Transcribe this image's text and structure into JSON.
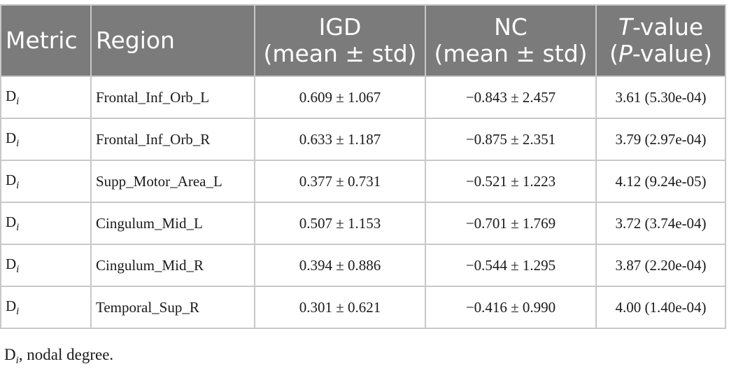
{
  "headers": {
    "metric": "Metric",
    "region": "Region",
    "igd_line1": "IGD",
    "igd_line2": "(mean ± std)",
    "nc_line1": "NC",
    "nc_line2": "(mean ± std)",
    "t_italic": "T",
    "t_rest": "-value",
    "p_open": "(",
    "p_italic": "P",
    "p_rest": "-value)"
  },
  "rows": [
    {
      "metric_base": "D",
      "metric_sub": "i",
      "region": "Frontal_Inf_Orb_L",
      "igd": "0.609 ± 1.067",
      "nc": "−0.843 ± 2.457",
      "tp": "3.61 (5.30e-04)"
    },
    {
      "metric_base": "D",
      "metric_sub": "i",
      "region": "Frontal_Inf_Orb_R",
      "igd": "0.633 ± 1.187",
      "nc": "−0.875 ± 2.351",
      "tp": "3.79 (2.97e-04)"
    },
    {
      "metric_base": "D",
      "metric_sub": "i",
      "region": "Supp_Motor_Area_L",
      "igd": "0.377 ± 0.731",
      "nc": "−0.521 ± 1.223",
      "tp": "4.12 (9.24e-05)"
    },
    {
      "metric_base": "D",
      "metric_sub": "i",
      "region": "Cingulum_Mid_L",
      "igd": "0.507 ± 1.153",
      "nc": "−0.701 ± 1.769",
      "tp": "3.72 (3.74e-04)"
    },
    {
      "metric_base": "D",
      "metric_sub": "i",
      "region": "Cingulum_Mid_R",
      "igd": "0.394 ± 0.886",
      "nc": "−0.544 ± 1.295",
      "tp": "3.87 (2.20e-04)"
    },
    {
      "metric_base": "D",
      "metric_sub": "i",
      "region": "Temporal_Sup_R",
      "igd": "0.301 ± 0.621",
      "nc": "−0.416 ± 0.990",
      "tp": "4.00 (1.40e-04)"
    }
  ],
  "footnote": {
    "base": "D",
    "sub": "i",
    "text": ", nodal degree."
  }
}
